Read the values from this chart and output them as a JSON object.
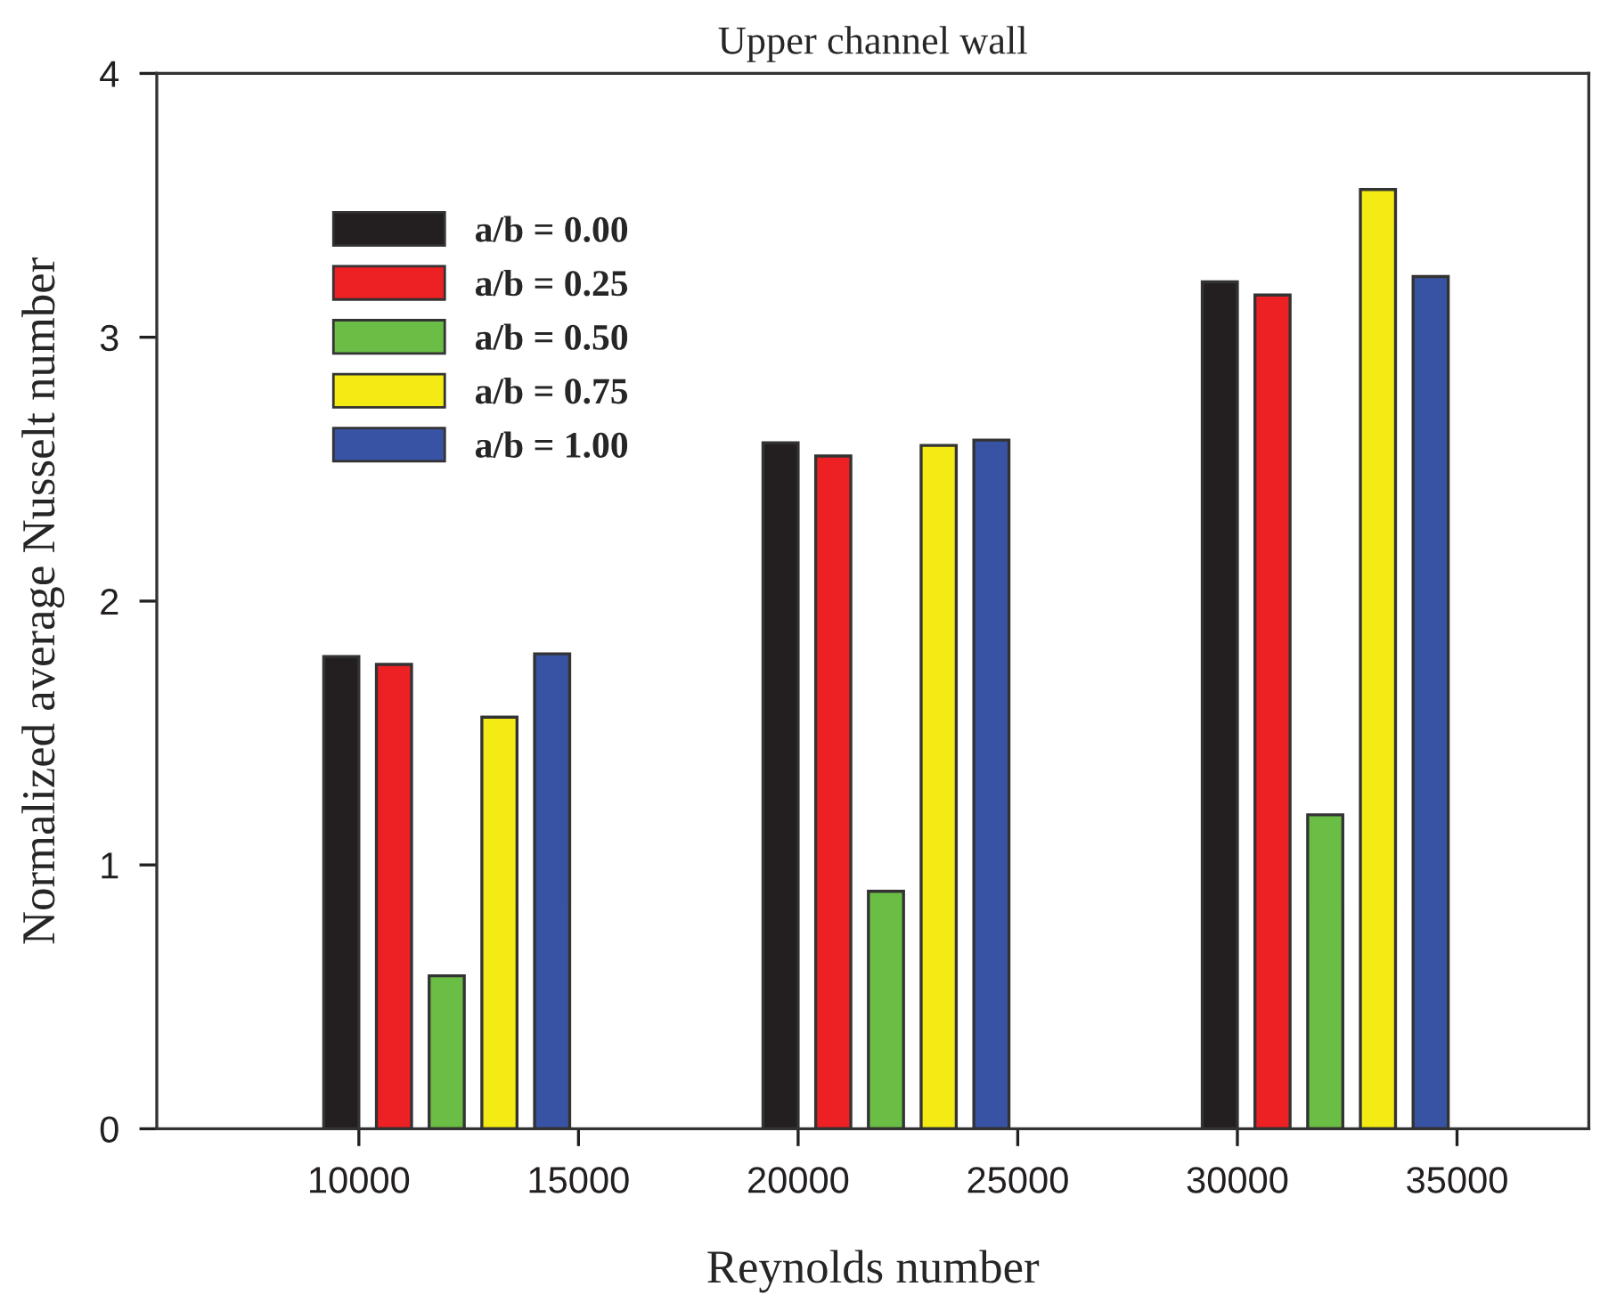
{
  "chart_data": {
    "type": "bar",
    "title": "Upper channel wall",
    "xlabel": "Reynolds number",
    "ylabel": "Normalized average Nusselt number",
    "xlim": [
      5400,
      38000
    ],
    "xticks": [
      10000,
      15000,
      20000,
      25000,
      30000,
      35000
    ],
    "ylim": [
      0,
      4
    ],
    "yticks": [
      0,
      1,
      2,
      3,
      4
    ],
    "grid": false,
    "legend": "top left",
    "series": [
      {
        "name": "a/b = 0.00",
        "color": "#231f20",
        "x": [
          9600,
          19600,
          29600
        ],
        "values": [
          1.79,
          2.6,
          3.21
        ]
      },
      {
        "name": "a/b = 0.25",
        "color": "#ed2024",
        "x": [
          10800,
          20800,
          30800
        ],
        "values": [
          1.76,
          2.55,
          3.16
        ]
      },
      {
        "name": "a/b = 0.50",
        "color": "#6abd45",
        "x": [
          12000,
          22000,
          32000
        ],
        "values": [
          0.58,
          0.9,
          1.19
        ]
      },
      {
        "name": "a/b = 0.75",
        "color": "#f5eb14",
        "x": [
          13200,
          23200,
          33200
        ],
        "values": [
          1.56,
          2.59,
          3.56
        ]
      },
      {
        "name": "a/b = 1.00",
        "color": "#3853a4",
        "x": [
          14400,
          24400,
          34400
        ],
        "values": [
          1.8,
          2.61,
          3.23
        ]
      }
    ]
  }
}
